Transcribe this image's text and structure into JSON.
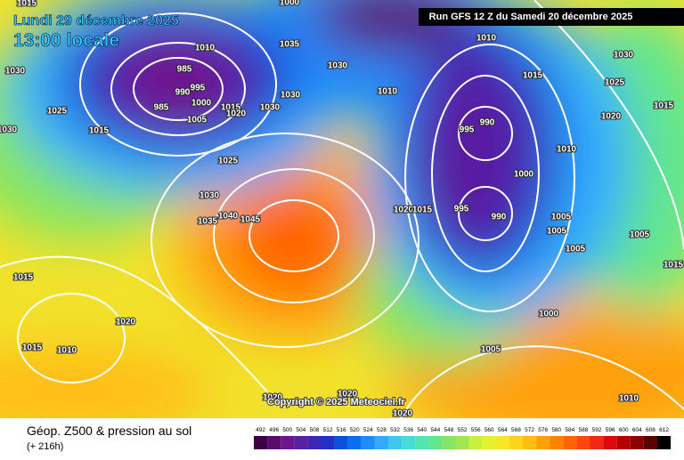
{
  "header": {
    "date": "Lundi 29 décembre 2025",
    "time": "13:00 locale",
    "run": "Run GFS 12 Z du Samedi 20 décembre 2025"
  },
  "copyright": "Copyright © 2025 Meteociel.fr",
  "footer": {
    "title": "Géop. Z500 & pression au sol",
    "lead": "(+ 216h)"
  },
  "isobar_labels": [
    "1015",
    "1000",
    "1030",
    "1025",
    "1030",
    "1015",
    "1010",
    "985",
    "990",
    "995",
    "985",
    "1000",
    "1005",
    "1015",
    "1020",
    "1030",
    "1030",
    "1035",
    "1030",
    "1010",
    "1010",
    "1015",
    "1030",
    "1025",
    "1020",
    "1015",
    "990",
    "995",
    "1010",
    "1000",
    "1025",
    "1030",
    "1035",
    "1040",
    "1045",
    "1020",
    "1015",
    "995",
    "990",
    "1005",
    "1005",
    "1005",
    "1005",
    "1015",
    "1015",
    "1020",
    "1000",
    "1015",
    "1010",
    "1005",
    "1020",
    "1020",
    "1010",
    "1020"
  ],
  "colorbar": {
    "ticks": [
      492,
      496,
      500,
      504,
      508,
      512,
      516,
      520,
      524,
      528,
      532,
      536,
      540,
      544,
      548,
      552,
      556,
      560,
      564,
      568,
      572,
      576,
      580,
      584,
      588,
      592,
      596,
      600,
      604,
      608,
      612
    ],
    "colors": [
      "#3c0046",
      "#5a0a6e",
      "#6e148c",
      "#5a1ea0",
      "#3c28b4",
      "#1e32c8",
      "#0a50dc",
      "#0a6ef0",
      "#1e8cff",
      "#32aaff",
      "#3cc8f0",
      "#46dcdc",
      "#50e6b4",
      "#64e68c",
      "#82e664",
      "#a0e650",
      "#c8f03c",
      "#e6f032",
      "#f5e628",
      "#ffd21e",
      "#ffbe14",
      "#ffa00a",
      "#ff8200",
      "#ff6400",
      "#ff460a",
      "#f02814",
      "#dc0a0a",
      "#b40000",
      "#8c0000",
      "#5a0000",
      "#000000"
    ]
  }
}
